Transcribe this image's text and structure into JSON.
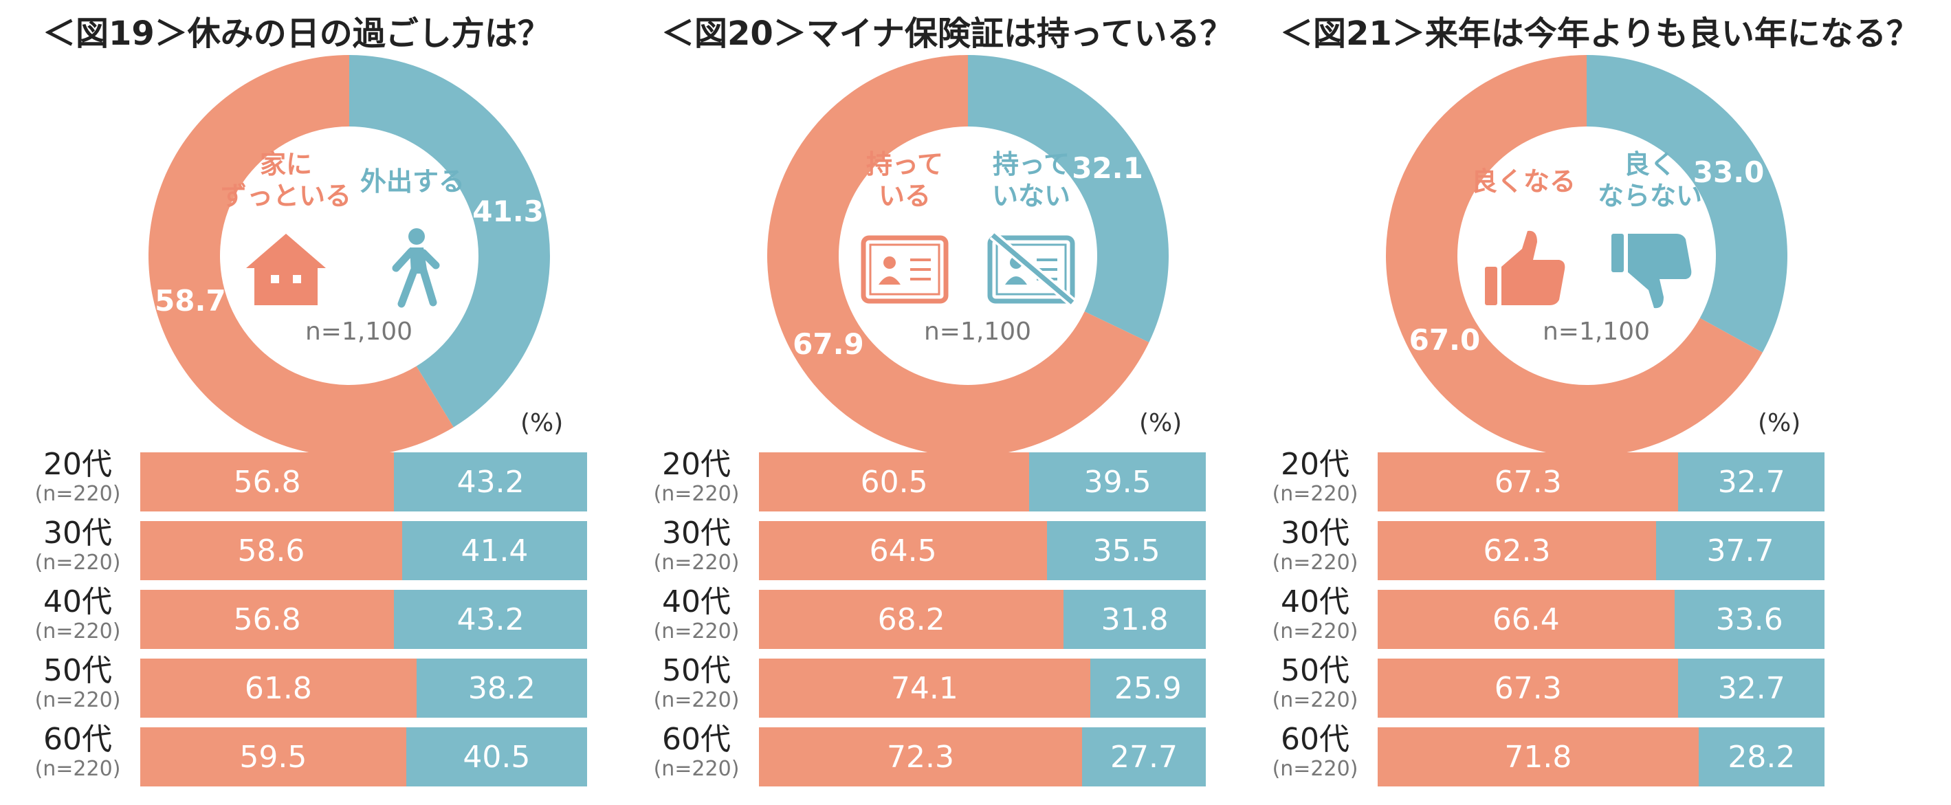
{
  "colors": {
    "accent_a": "#F0977A",
    "accent_b": "#7DBBC9",
    "text_a": "#EE8A70",
    "text_b": "#6FB3C3"
  },
  "pct_label": "(%)",
  "n_label": "n=1,100",
  "chart_data": [
    {
      "type": "pie",
      "title": "＜図19＞休みの日の過ごし方は？",
      "total_label": "n=1,100",
      "center_labels": {
        "a": "家に\nずっといる",
        "b": "外出する"
      },
      "center_icons": {
        "a": "house-icon",
        "b": "walking-person-icon"
      },
      "slices": [
        {
          "key": "b",
          "value": 41.3,
          "label": "41.3"
        },
        {
          "key": "a",
          "value": 58.7,
          "label": "58.7"
        }
      ],
      "rows": [
        {
          "age": "20代",
          "n": "(n=220)",
          "a": 56.8,
          "b": 43.2,
          "a_label": "56.8",
          "b_label": "43.2"
        },
        {
          "age": "30代",
          "n": "(n=220)",
          "a": 58.6,
          "b": 41.4,
          "a_label": "58.6",
          "b_label": "41.4"
        },
        {
          "age": "40代",
          "n": "(n=220)",
          "a": 56.8,
          "b": 43.2,
          "a_label": "56.8",
          "b_label": "43.2"
        },
        {
          "age": "50代",
          "n": "(n=220)",
          "a": 61.8,
          "b": 38.2,
          "a_label": "61.8",
          "b_label": "38.2"
        },
        {
          "age": "60代",
          "n": "(n=220)",
          "a": 59.5,
          "b": 40.5,
          "a_label": "59.5",
          "b_label": "40.5"
        }
      ]
    },
    {
      "type": "pie",
      "title": "＜図20＞マイナ保険証は持っている？",
      "total_label": "n=1,100",
      "center_labels": {
        "a": "持って\nいる",
        "b": "持って\nいない"
      },
      "center_icons": {
        "a": "id-card-icon",
        "b": "id-card-crossed-icon"
      },
      "slices": [
        {
          "key": "b",
          "value": 32.1,
          "label": "32.1"
        },
        {
          "key": "a",
          "value": 67.9,
          "label": "67.9"
        }
      ],
      "rows": [
        {
          "age": "20代",
          "n": "(n=220)",
          "a": 60.5,
          "b": 39.5,
          "a_label": "60.5",
          "b_label": "39.5"
        },
        {
          "age": "30代",
          "n": "(n=220)",
          "a": 64.5,
          "b": 35.5,
          "a_label": "64.5",
          "b_label": "35.5"
        },
        {
          "age": "40代",
          "n": "(n=220)",
          "a": 68.2,
          "b": 31.8,
          "a_label": "68.2",
          "b_label": "31.8"
        },
        {
          "age": "50代",
          "n": "(n=220)",
          "a": 74.1,
          "b": 25.9,
          "a_label": "74.1",
          "b_label": "25.9"
        },
        {
          "age": "60代",
          "n": "(n=220)",
          "a": 72.3,
          "b": 27.7,
          "a_label": "72.3",
          "b_label": "27.7"
        }
      ]
    },
    {
      "type": "pie",
      "title": "＜図21＞来年は今年よりも良い年になる？",
      "total_label": "n=1,100",
      "center_labels": {
        "a": "良くなる",
        "b": "良く\nならない"
      },
      "center_icons": {
        "a": "thumbs-up-icon",
        "b": "thumbs-down-icon"
      },
      "slices": [
        {
          "key": "b",
          "value": 33.0,
          "label": "33.0"
        },
        {
          "key": "a",
          "value": 67.0,
          "label": "67.0"
        }
      ],
      "rows": [
        {
          "age": "20代",
          "n": "(n=220)",
          "a": 67.3,
          "b": 32.7,
          "a_label": "67.3",
          "b_label": "32.7"
        },
        {
          "age": "30代",
          "n": "(n=220)",
          "a": 62.3,
          "b": 37.7,
          "a_label": "62.3",
          "b_label": "37.7"
        },
        {
          "age": "40代",
          "n": "(n=220)",
          "a": 66.4,
          "b": 33.6,
          "a_label": "66.4",
          "b_label": "33.6"
        },
        {
          "age": "50代",
          "n": "(n=220)",
          "a": 67.3,
          "b": 32.7,
          "a_label": "67.3",
          "b_label": "32.7"
        },
        {
          "age": "60代",
          "n": "(n=220)",
          "a": 71.8,
          "b": 28.2,
          "a_label": "71.8",
          "b_label": "28.2"
        }
      ]
    }
  ]
}
